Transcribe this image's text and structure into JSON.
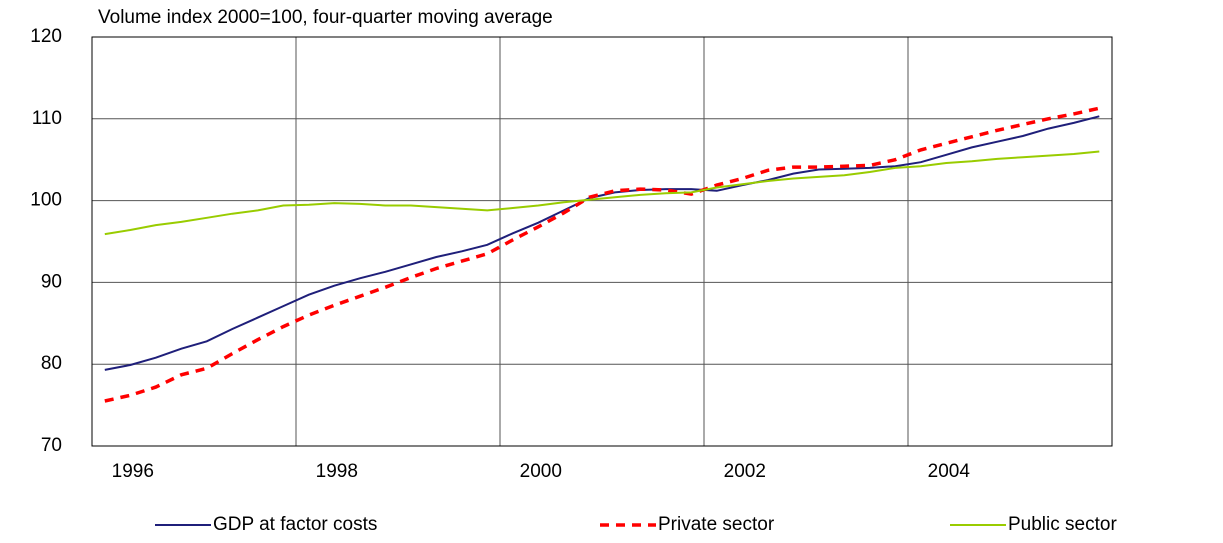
{
  "chart_data": {
    "type": "line",
    "title": "Volume index 2000=100, four-quarter moving average",
    "x": [
      1996.125,
      1996.375,
      1996.625,
      1996.875,
      1997.125,
      1997.375,
      1997.625,
      1997.875,
      1998.125,
      1998.375,
      1998.625,
      1998.875,
      1999.125,
      1999.375,
      1999.625,
      1999.875,
      2000.125,
      2000.375,
      2000.625,
      2000.875,
      2001.125,
      2001.375,
      2001.625,
      2001.875,
      2002.125,
      2002.375,
      2002.625,
      2002.875,
      2003.125,
      2003.375,
      2003.625,
      2003.875,
      2004.125,
      2004.375,
      2004.625,
      2004.875,
      2005.125,
      2005.375,
      2005.625,
      2005.875
    ],
    "series": [
      {
        "name": "GDP at factor costs",
        "color": "#1f1f7a",
        "dash": false,
        "values": [
          79.3,
          79.9,
          80.8,
          81.9,
          82.8,
          84.3,
          85.7,
          87.1,
          88.5,
          89.6,
          90.5,
          91.3,
          92.2,
          93.1,
          93.8,
          94.6,
          96.0,
          97.3,
          98.8,
          100.3,
          101.0,
          101.3,
          101.4,
          101.4,
          101.2,
          101.9,
          102.5,
          103.3,
          103.8,
          103.9,
          104.0,
          104.2,
          104.7,
          105.6,
          106.5,
          107.2,
          107.9,
          108.8,
          109.5,
          110.3
        ]
      },
      {
        "name": "Private sector",
        "color": "#ff0000",
        "dash": true,
        "values": [
          75.5,
          76.2,
          77.2,
          78.7,
          79.5,
          81.3,
          83.0,
          84.6,
          86.0,
          87.2,
          88.3,
          89.4,
          90.6,
          91.7,
          92.6,
          93.5,
          95.2,
          96.8,
          98.5,
          100.4,
          101.2,
          101.4,
          101.3,
          100.8,
          101.9,
          102.7,
          103.7,
          104.1,
          104.1,
          104.2,
          104.3,
          105.0,
          106.2,
          107.0,
          107.8,
          108.6,
          109.3,
          110.0,
          110.6,
          111.3
        ]
      },
      {
        "name": "Public sector",
        "color": "#99cc00",
        "dash": false,
        "values": [
          95.9,
          96.4,
          97.0,
          97.4,
          97.9,
          98.4,
          98.8,
          99.4,
          99.5,
          99.7,
          99.6,
          99.4,
          99.4,
          99.2,
          99.0,
          98.8,
          99.1,
          99.4,
          99.8,
          100.1,
          100.4,
          100.7,
          100.9,
          101.0,
          101.6,
          102.0,
          102.4,
          102.7,
          102.9,
          103.1,
          103.5,
          104.0,
          104.2,
          104.6,
          104.8,
          105.1,
          105.3,
          105.5,
          105.7,
          106.0
        ]
      }
    ],
    "xlim": [
      1996,
      2006
    ],
    "xticks": [
      1996,
      1998,
      2000,
      2002,
      2004
    ],
    "ylim": [
      70,
      120
    ],
    "yticks": [
      70,
      80,
      90,
      100,
      110,
      120
    ],
    "grid": true,
    "legend": "bottom"
  }
}
